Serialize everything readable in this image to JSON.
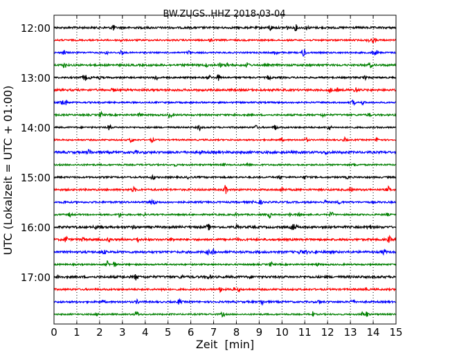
{
  "chart_data": {
    "type": "line",
    "title": "BW.ZUGS..HHZ 2018-03-04",
    "xlabel": "Zeit  [min]",
    "ylabel": "UTC (Lokalzeit = UTC + 01:00)",
    "xlim": [
      0,
      15
    ],
    "x_ticks": [
      0,
      1,
      2,
      3,
      4,
      5,
      6,
      7,
      8,
      9,
      10,
      11,
      12,
      13,
      14,
      15
    ],
    "x_tick_labels": [
      "0",
      "1",
      "2",
      "3",
      "4",
      "5",
      "6",
      "7",
      "8",
      "9",
      "10",
      "11",
      "12",
      "13",
      "14",
      "15"
    ],
    "y_tick_labels": [
      "12:00",
      "13:00",
      "14:00",
      "15:00",
      "16:00",
      "17:00"
    ],
    "grid": "vertical dotted",
    "colors": [
      "#000000",
      "#ff0000",
      "#0000ff",
      "#008000"
    ],
    "series": [
      {
        "start": "12:00",
        "color": "#000000"
      },
      {
        "start": "12:15",
        "color": "#ff0000"
      },
      {
        "start": "12:30",
        "color": "#0000ff"
      },
      {
        "start": "12:45",
        "color": "#008000"
      },
      {
        "start": "13:00",
        "color": "#000000"
      },
      {
        "start": "13:15",
        "color": "#ff0000"
      },
      {
        "start": "13:30",
        "color": "#0000ff"
      },
      {
        "start": "13:45",
        "color": "#008000"
      },
      {
        "start": "14:00",
        "color": "#000000"
      },
      {
        "start": "14:15",
        "color": "#ff0000"
      },
      {
        "start": "14:30",
        "color": "#0000ff"
      },
      {
        "start": "14:45",
        "color": "#008000"
      },
      {
        "start": "15:00",
        "color": "#000000"
      },
      {
        "start": "15:15",
        "color": "#ff0000"
      },
      {
        "start": "15:30",
        "color": "#0000ff"
      },
      {
        "start": "15:45",
        "color": "#008000"
      },
      {
        "start": "16:00",
        "color": "#000000"
      },
      {
        "start": "16:15",
        "color": "#ff0000"
      },
      {
        "start": "16:30",
        "color": "#0000ff"
      },
      {
        "start": "16:45",
        "color": "#008000"
      },
      {
        "start": "17:00",
        "color": "#000000"
      },
      {
        "start": "17:15",
        "color": "#ff0000"
      },
      {
        "start": "17:30",
        "color": "#0000ff"
      },
      {
        "start": "17:45",
        "color": "#008000"
      }
    ]
  }
}
